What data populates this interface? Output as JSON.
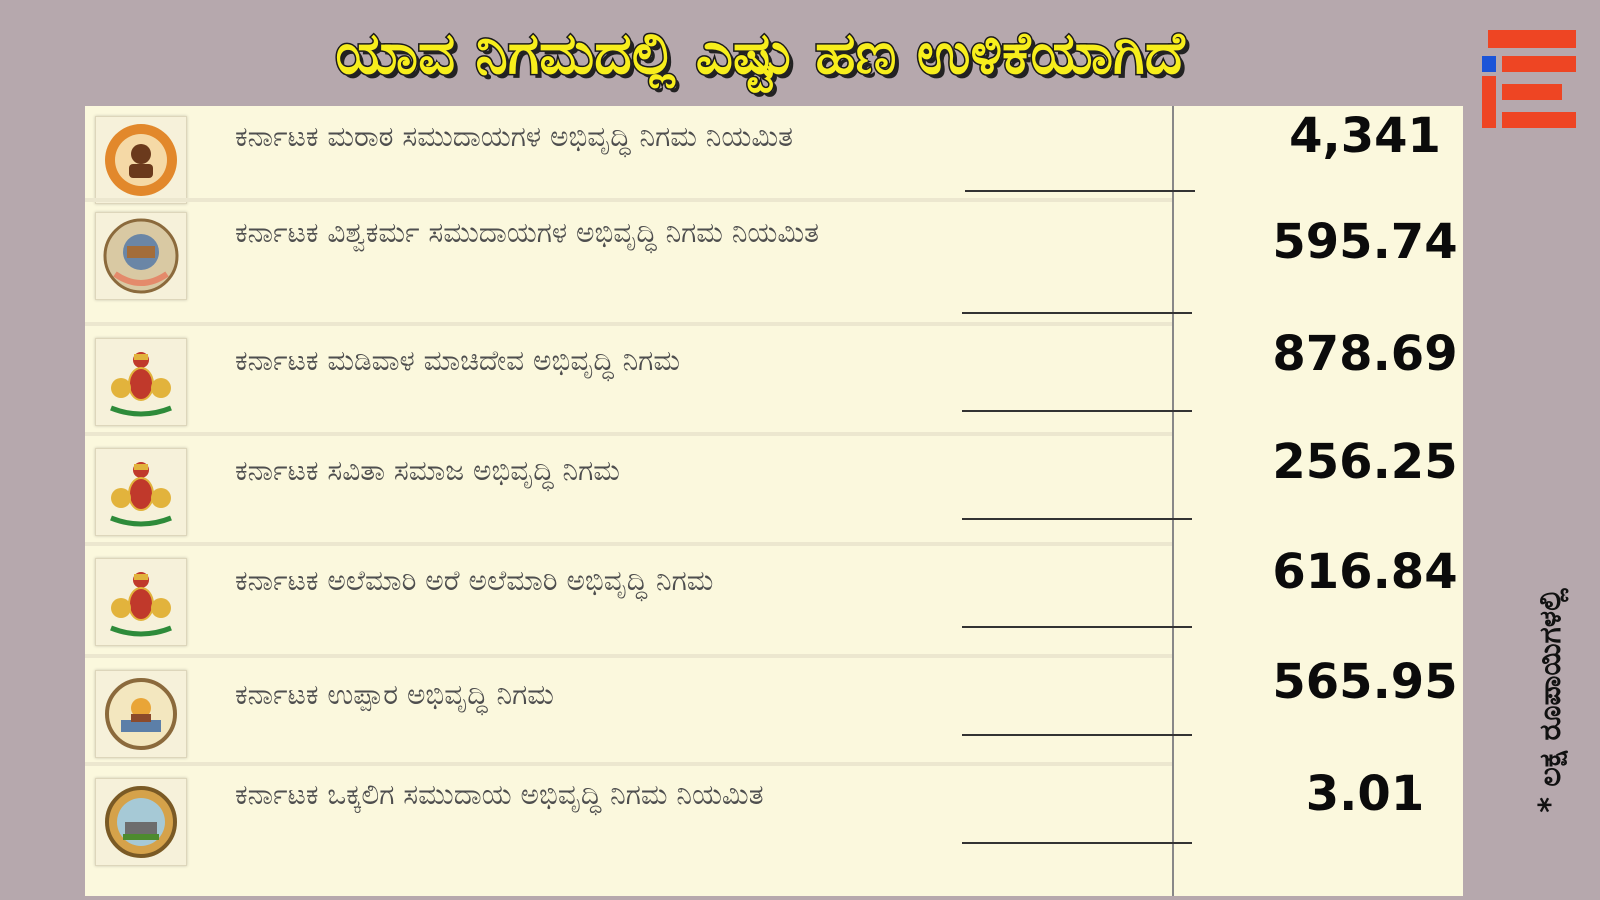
{
  "headline": "ಯಾವ ನಿಗಮದಲ್ಲಿ ಎಷ್ಟು ಹಣ ಉಳಿಕೆಯಾಗಿದೆ",
  "unit_note": "* ಲಕ್ಷ ರೂಪಾಯಿಗಳಲ್ಲಿ",
  "colors": {
    "background": "#b6a8ad",
    "panel": "#fbf8dd",
    "headline": "#f7ee1c",
    "logo": "#ee4523"
  },
  "rows": [
    {
      "name": "ಕರ್ನಾಟಕ ಮರಾಠ ಸಮುದಾಯಗಳ ಅಭಿವೃದ್ಧಿ ನಿಗಮ ನಿಯಮಿತ",
      "amount": "4,341",
      "seal": "maratha-seal-icon"
    },
    {
      "name": "ಕರ್ನಾಟಕ ವಿಶ್ವಕರ್ಮ ಸಮುದಾಯಗಳ ಅಭಿವೃದ್ಧಿ ನಿಗಮ ನಿಯಮಿತ",
      "amount": "595.74",
      "seal": "vishwakarma-seal-icon"
    },
    {
      "name": "ಕರ್ನಾಟಕ ಮಡಿವಾಳ ಮಾಚಿದೇವ ಅಭಿವೃದ್ಧಿ ನಿಗಮ",
      "amount": "878.69",
      "seal": "karnataka-emblem-icon"
    },
    {
      "name": "ಕರ್ನಾಟಕ ಸವಿತಾ ಸಮಾಜ ಅಭಿವೃದ್ಧಿ ನಿಗಮ",
      "amount": "256.25",
      "seal": "karnataka-emblem-icon"
    },
    {
      "name": "ಕರ್ನಾಟಕ ಅಲೆಮಾರಿ ಅರೆ ಅಲೆಮಾರಿ ಅಭಿವೃದ್ಧಿ ನಿಗಮ",
      "amount": "616.84",
      "seal": "karnataka-emblem-icon"
    },
    {
      "name": "ಕರ್ನಾಟಕ ಉಪ್ಪಾರ ಅಭಿವೃದ್ಧಿ ನಿಗಮ",
      "amount": "565.95",
      "seal": "uppara-seal-icon"
    },
    {
      "name": "ಕರ್ನಾಟಕ ಒಕ್ಕಲಿಗ ಸಮುದಾಯ ಅಭಿವೃದ್ಧಿ ನಿಗಮ ನಿಯಮಿತ",
      "amount": "3.01",
      "seal": "vokkaliga-seal-icon"
    }
  ]
}
